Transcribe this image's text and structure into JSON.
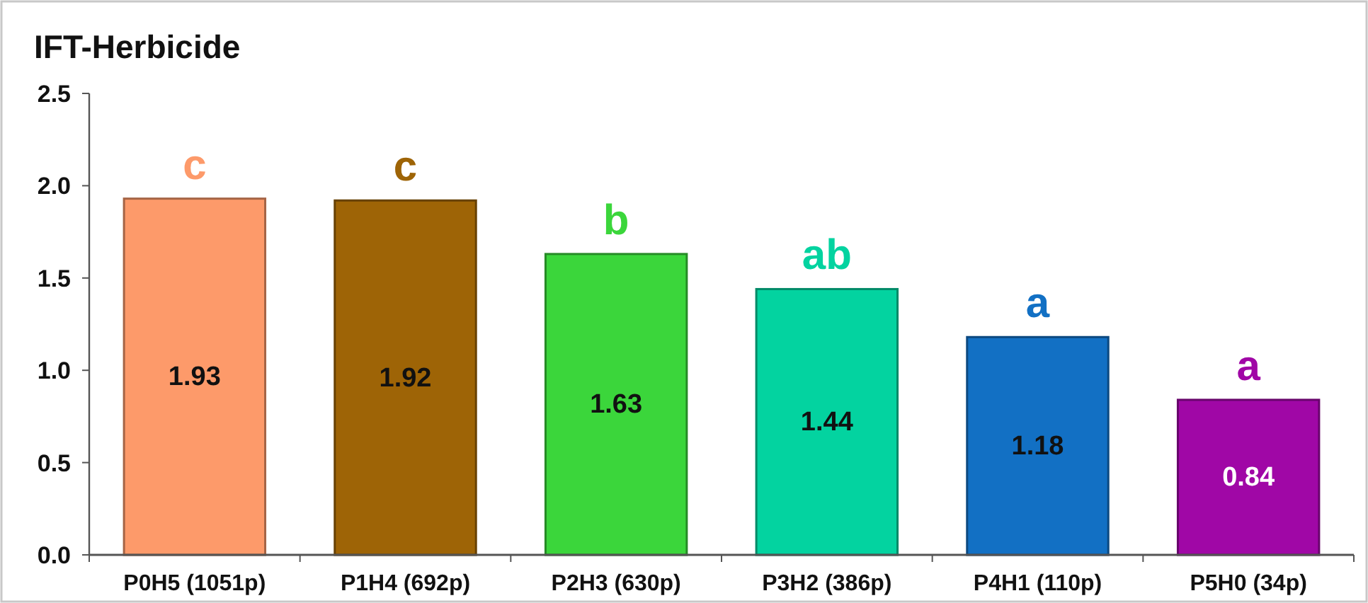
{
  "chart_data": {
    "type": "bar",
    "title": "IFT-Herbicide",
    "categories": [
      "P0H5 (1051p)",
      "P1H4 (692p)",
      "P2H3 (630p)",
      "P3H2 (386p)",
      "P4H1 (110p)",
      "P5H0 (34p)"
    ],
    "values": [
      1.93,
      1.92,
      1.63,
      1.44,
      1.18,
      0.84
    ],
    "colors": [
      "#fd9a6a",
      "#9e6406",
      "#3bd63b",
      "#03d3a0",
      "#1270c4",
      "#a007a6"
    ],
    "ylim": [
      0,
      2.5
    ],
    "yticks": [
      {
        "value": 0,
        "label": "0.0"
      },
      {
        "value": 0.5,
        "label": "0.5"
      },
      {
        "value": 1,
        "label": "1.0"
      },
      {
        "value": 1.5,
        "label": "1.5"
      },
      {
        "value": 2,
        "label": "2.0"
      },
      {
        "value": 2.5,
        "label": "2.5"
      }
    ],
    "data_labels": true,
    "grid": false,
    "annotations": [
      {
        "text": "c",
        "x": "P0H5 (1051p)",
        "y": 1.93
      },
      {
        "text": "c",
        "x": "P1H4 (692p)",
        "y": 1.92
      },
      {
        "text": "b",
        "x": "P2H3 (630p)",
        "y": 1.63
      },
      {
        "text": "ab",
        "x": "P3H2 (386p)",
        "y": 1.44
      },
      {
        "text": "a",
        "x": "P4H1 (110p)",
        "y": 1.18
      },
      {
        "text": "a",
        "x": "P5H0 (34p)",
        "y": 0.84
      }
    ]
  }
}
